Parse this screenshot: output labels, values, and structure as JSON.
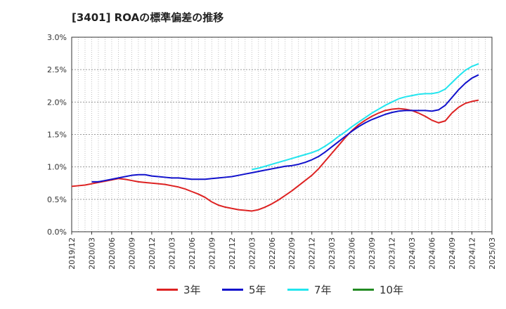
{
  "title": "[3401]  ROAの標準偏差の推移",
  "chart_data": {
    "type": "line",
    "ylim": [
      0,
      3.0
    ],
    "y_ticks": [
      "0.0%",
      "0.5%",
      "1.0%",
      "1.5%",
      "2.0%",
      "2.5%",
      "3.0%"
    ],
    "x_ticks": [
      "2019/12",
      "2020/03",
      "2020/06",
      "2020/09",
      "2020/12",
      "2021/03",
      "2021/06",
      "2021/09",
      "2021/12",
      "2022/03",
      "2022/06",
      "2022/09",
      "2022/12",
      "2023/03",
      "2023/06",
      "2023/09",
      "2023/12",
      "2024/03",
      "2024/06",
      "2024/09",
      "2024/12",
      "2025/03"
    ],
    "grid": true,
    "legend_position": "bottom",
    "series": [
      {
        "name": "3年",
        "color": "#dd2222",
        "points": [
          [
            "2019/12",
            0.7
          ],
          [
            "2020/01",
            0.71
          ],
          [
            "2020/02",
            0.72
          ],
          [
            "2020/03",
            0.74
          ],
          [
            "2020/04",
            0.76
          ],
          [
            "2020/05",
            0.78
          ],
          [
            "2020/06",
            0.8
          ],
          [
            "2020/07",
            0.82
          ],
          [
            "2020/08",
            0.81
          ],
          [
            "2020/09",
            0.79
          ],
          [
            "2020/10",
            0.77
          ],
          [
            "2020/11",
            0.76
          ],
          [
            "2020/12",
            0.75
          ],
          [
            "2021/01",
            0.74
          ],
          [
            "2021/02",
            0.73
          ],
          [
            "2021/03",
            0.71
          ],
          [
            "2021/04",
            0.69
          ],
          [
            "2021/05",
            0.66
          ],
          [
            "2021/06",
            0.62
          ],
          [
            "2021/07",
            0.58
          ],
          [
            "2021/08",
            0.53
          ],
          [
            "2021/09",
            0.46
          ],
          [
            "2021/10",
            0.41
          ],
          [
            "2021/11",
            0.38
          ],
          [
            "2021/12",
            0.36
          ],
          [
            "2022/01",
            0.34
          ],
          [
            "2022/02",
            0.33
          ],
          [
            "2022/03",
            0.32
          ],
          [
            "2022/04",
            0.34
          ],
          [
            "2022/05",
            0.38
          ],
          [
            "2022/06",
            0.43
          ],
          [
            "2022/07",
            0.49
          ],
          [
            "2022/08",
            0.56
          ],
          [
            "2022/09",
            0.63
          ],
          [
            "2022/10",
            0.71
          ],
          [
            "2022/11",
            0.79
          ],
          [
            "2022/12",
            0.87
          ],
          [
            "2023/01",
            0.97
          ],
          [
            "2023/02",
            1.09
          ],
          [
            "2023/03",
            1.21
          ],
          [
            "2023/04",
            1.33
          ],
          [
            "2023/05",
            1.45
          ],
          [
            "2023/06",
            1.56
          ],
          [
            "2023/07",
            1.65
          ],
          [
            "2023/08",
            1.72
          ],
          [
            "2023/09",
            1.78
          ],
          [
            "2023/10",
            1.83
          ],
          [
            "2023/11",
            1.87
          ],
          [
            "2023/12",
            1.89
          ],
          [
            "2024/01",
            1.9
          ],
          [
            "2024/02",
            1.89
          ],
          [
            "2024/03",
            1.87
          ],
          [
            "2024/04",
            1.83
          ],
          [
            "2024/05",
            1.78
          ],
          [
            "2024/06",
            1.72
          ],
          [
            "2024/07",
            1.68
          ],
          [
            "2024/08",
            1.71
          ],
          [
            "2024/09",
            1.83
          ],
          [
            "2024/10",
            1.92
          ],
          [
            "2024/11",
            1.98
          ],
          [
            "2024/12",
            2.01
          ],
          [
            "2025/01",
            2.03
          ]
        ]
      },
      {
        "name": "5年",
        "color": "#1111cc",
        "points": [
          [
            "2020/03",
            0.77
          ],
          [
            "2020/04",
            0.77
          ],
          [
            "2020/05",
            0.79
          ],
          [
            "2020/06",
            0.81
          ],
          [
            "2020/07",
            0.83
          ],
          [
            "2020/08",
            0.85
          ],
          [
            "2020/09",
            0.87
          ],
          [
            "2020/10",
            0.88
          ],
          [
            "2020/11",
            0.88
          ],
          [
            "2020/12",
            0.86
          ],
          [
            "2021/01",
            0.85
          ],
          [
            "2021/02",
            0.84
          ],
          [
            "2021/03",
            0.83
          ],
          [
            "2021/04",
            0.83
          ],
          [
            "2021/05",
            0.82
          ],
          [
            "2021/06",
            0.81
          ],
          [
            "2021/07",
            0.81
          ],
          [
            "2021/08",
            0.81
          ],
          [
            "2021/09",
            0.82
          ],
          [
            "2021/10",
            0.83
          ],
          [
            "2021/11",
            0.84
          ],
          [
            "2021/12",
            0.85
          ],
          [
            "2022/01",
            0.87
          ],
          [
            "2022/02",
            0.89
          ],
          [
            "2022/03",
            0.91
          ],
          [
            "2022/04",
            0.93
          ],
          [
            "2022/05",
            0.95
          ],
          [
            "2022/06",
            0.97
          ],
          [
            "2022/07",
            0.99
          ],
          [
            "2022/08",
            1.01
          ],
          [
            "2022/09",
            1.02
          ],
          [
            "2022/10",
            1.04
          ],
          [
            "2022/11",
            1.07
          ],
          [
            "2022/12",
            1.11
          ],
          [
            "2023/01",
            1.16
          ],
          [
            "2023/02",
            1.23
          ],
          [
            "2023/03",
            1.31
          ],
          [
            "2023/04",
            1.39
          ],
          [
            "2023/05",
            1.47
          ],
          [
            "2023/06",
            1.55
          ],
          [
            "2023/07",
            1.62
          ],
          [
            "2023/08",
            1.68
          ],
          [
            "2023/09",
            1.73
          ],
          [
            "2023/10",
            1.77
          ],
          [
            "2023/11",
            1.81
          ],
          [
            "2023/12",
            1.84
          ],
          [
            "2024/01",
            1.86
          ],
          [
            "2024/02",
            1.87
          ],
          [
            "2024/03",
            1.87
          ],
          [
            "2024/04",
            1.87
          ],
          [
            "2024/05",
            1.87
          ],
          [
            "2024/06",
            1.86
          ],
          [
            "2024/07",
            1.88
          ],
          [
            "2024/08",
            1.95
          ],
          [
            "2024/09",
            2.07
          ],
          [
            "2024/10",
            2.19
          ],
          [
            "2024/11",
            2.29
          ],
          [
            "2024/12",
            2.37
          ],
          [
            "2025/01",
            2.42
          ]
        ]
      },
      {
        "name": "7年",
        "color": "#22e5ee",
        "points": [
          [
            "2022/03",
            0.96
          ],
          [
            "2022/04",
            0.98
          ],
          [
            "2022/05",
            1.01
          ],
          [
            "2022/06",
            1.04
          ],
          [
            "2022/07",
            1.07
          ],
          [
            "2022/08",
            1.1
          ],
          [
            "2022/09",
            1.13
          ],
          [
            "2022/10",
            1.16
          ],
          [
            "2022/11",
            1.19
          ],
          [
            "2022/12",
            1.22
          ],
          [
            "2023/01",
            1.26
          ],
          [
            "2023/02",
            1.32
          ],
          [
            "2023/03",
            1.39
          ],
          [
            "2023/04",
            1.47
          ],
          [
            "2023/05",
            1.54
          ],
          [
            "2023/06",
            1.62
          ],
          [
            "2023/07",
            1.69
          ],
          [
            "2023/08",
            1.76
          ],
          [
            "2023/09",
            1.83
          ],
          [
            "2023/10",
            1.89
          ],
          [
            "2023/11",
            1.95
          ],
          [
            "2023/12",
            2.0
          ],
          [
            "2024/01",
            2.05
          ],
          [
            "2024/02",
            2.08
          ],
          [
            "2024/03",
            2.1
          ],
          [
            "2024/04",
            2.12
          ],
          [
            "2024/05",
            2.13
          ],
          [
            "2024/06",
            2.13
          ],
          [
            "2024/07",
            2.15
          ],
          [
            "2024/08",
            2.2
          ],
          [
            "2024/09",
            2.3
          ],
          [
            "2024/10",
            2.4
          ],
          [
            "2024/11",
            2.49
          ],
          [
            "2024/12",
            2.55
          ],
          [
            "2025/01",
            2.59
          ]
        ]
      },
      {
        "name": "10年",
        "color": "#228b22",
        "points": []
      }
    ]
  }
}
